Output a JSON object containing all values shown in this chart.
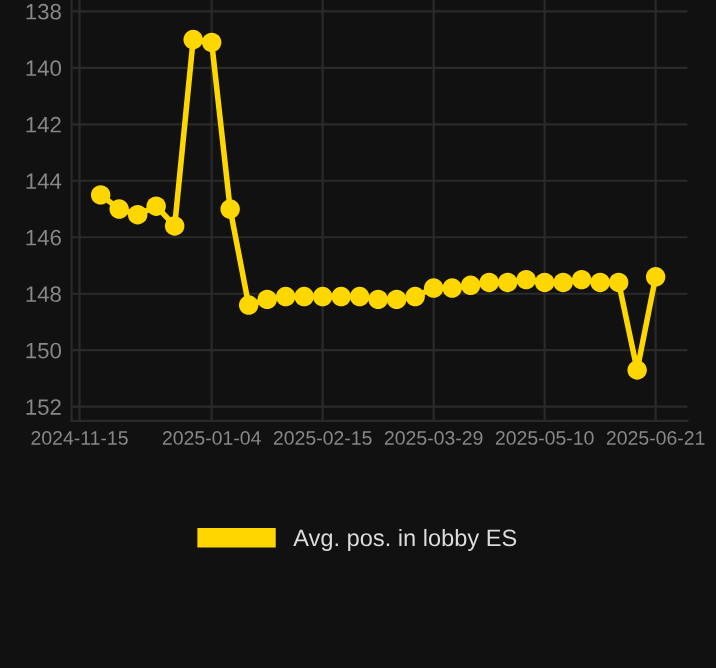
{
  "chart_data": {
    "type": "line",
    "x": [
      "2024-11-23",
      "2024-11-30",
      "2024-12-07",
      "2024-12-14",
      "2024-12-21",
      "2024-12-28",
      "2025-01-04",
      "2025-01-11",
      "2025-01-18",
      "2025-01-25",
      "2025-02-01",
      "2025-02-08",
      "2025-02-15",
      "2025-02-22",
      "2025-03-01",
      "2025-03-08",
      "2025-03-15",
      "2025-03-22",
      "2025-03-29",
      "2025-04-05",
      "2025-04-12",
      "2025-04-19",
      "2025-04-26",
      "2025-05-03",
      "2025-05-10",
      "2025-05-17",
      "2025-05-24",
      "2025-05-31",
      "2025-06-07",
      "2025-06-14",
      "2025-06-21"
    ],
    "series": [
      {
        "name": "Avg. pos. in lobby ES",
        "color": "#ffd700",
        "values": [
          144.5,
          145.0,
          145.2,
          144.9,
          145.6,
          139.0,
          139.1,
          145.0,
          148.4,
          148.2,
          148.1,
          148.1,
          148.1,
          148.1,
          148.1,
          148.2,
          148.2,
          148.1,
          147.8,
          147.8,
          147.7,
          147.6,
          147.6,
          147.5,
          147.6,
          147.6,
          147.5,
          147.6,
          147.6,
          150.7,
          147.4
        ]
      }
    ],
    "xlim": [
      "2024-11-12",
      "2025-07-03"
    ],
    "xticks": [
      "2024-11-15",
      "2025-01-04",
      "2025-02-15",
      "2025-03-29",
      "2025-05-10",
      "2025-06-21"
    ],
    "ylim": [
      152.5,
      137.6
    ],
    "yticks": [
      138,
      140,
      142,
      144,
      146,
      148,
      150,
      152
    ],
    "grid": true,
    "legend": "bottom",
    "marker": "circle",
    "line_style": "solid"
  }
}
